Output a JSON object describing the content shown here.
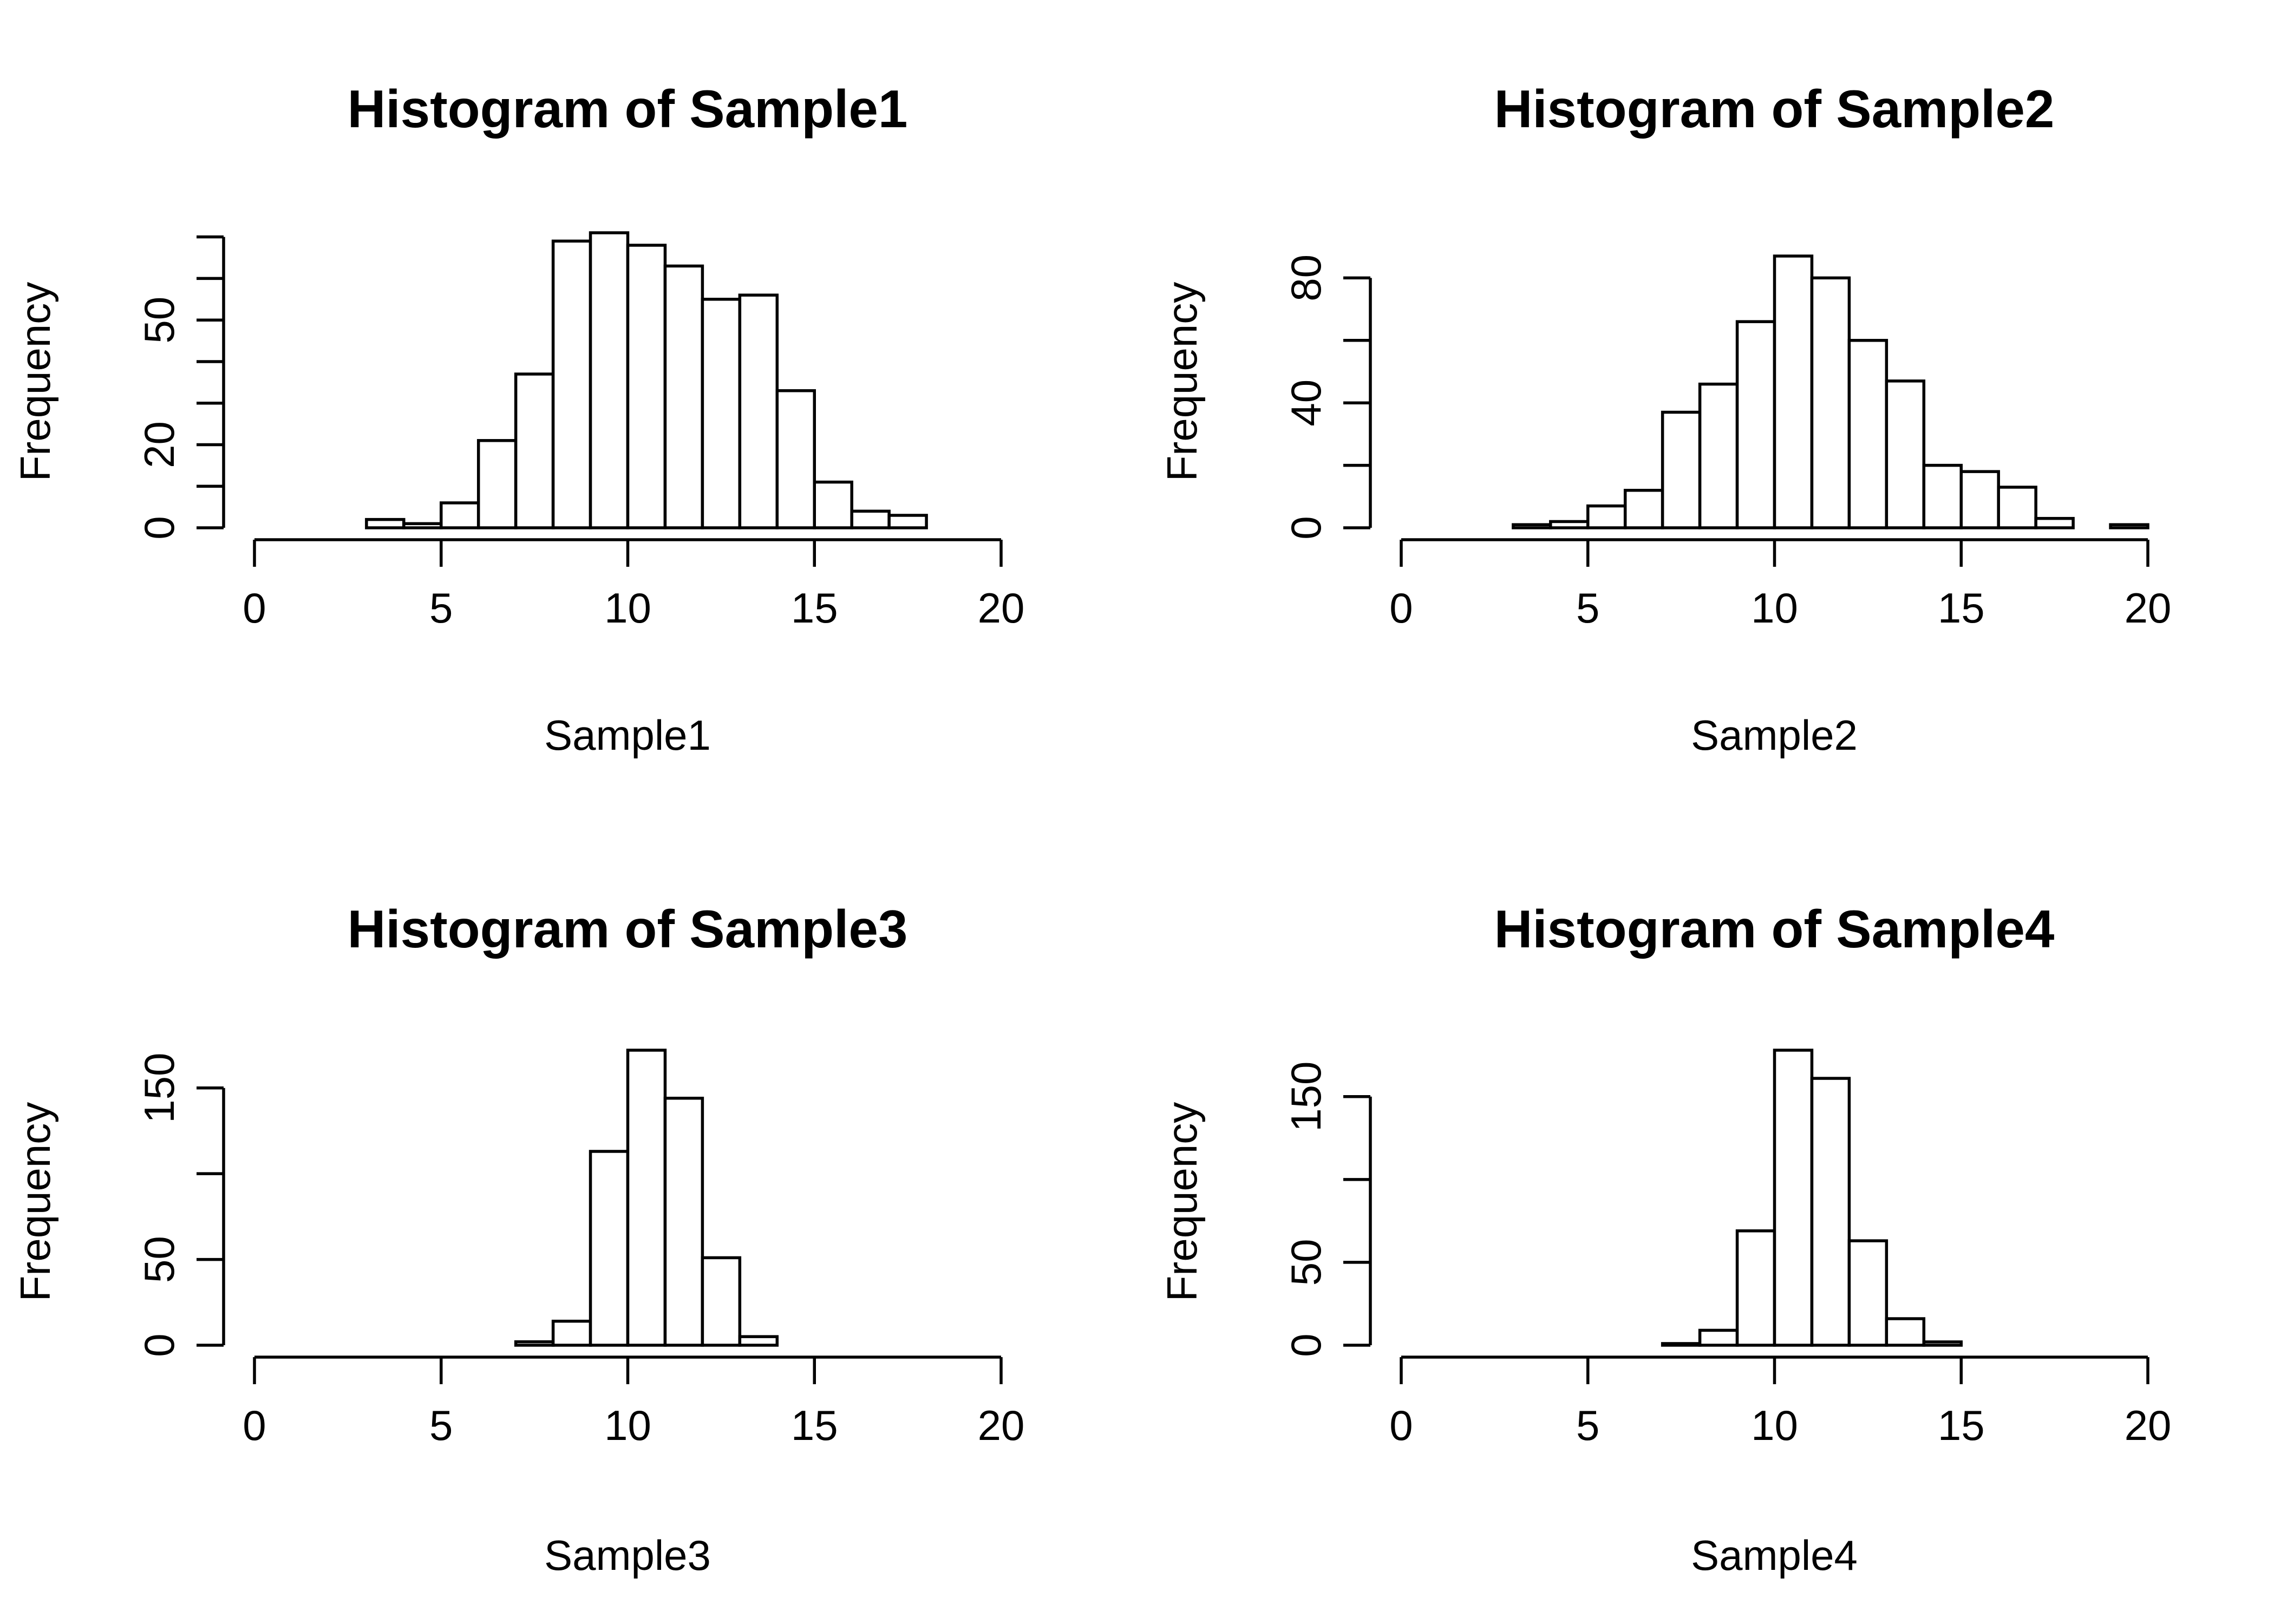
{
  "chart_data": [
    {
      "type": "bar",
      "title": "Histogram of Sample1",
      "xlabel": "Sample1",
      "ylabel": "Frequency",
      "bin_edges": [
        0,
        1,
        2,
        3,
        4,
        5,
        6,
        7,
        8,
        9,
        10,
        11,
        12,
        13,
        14,
        15,
        16,
        17,
        18,
        19,
        20
      ],
      "values": [
        0,
        0,
        0,
        2,
        1,
        6,
        21,
        37,
        69,
        71,
        68,
        63,
        55,
        56,
        33,
        11,
        4,
        3,
        0,
        0
      ],
      "xticks": [
        0,
        5,
        10,
        15,
        20
      ],
      "yticks": [
        0,
        20,
        50
      ],
      "yminor": [
        10,
        30,
        40,
        60,
        70
      ],
      "xlim": [
        0,
        20
      ],
      "ylim": [
        0,
        71
      ]
    },
    {
      "type": "bar",
      "title": "Histogram of Sample2",
      "xlabel": "Sample2",
      "ylabel": "Frequency",
      "bin_edges": [
        0,
        1,
        2,
        3,
        4,
        5,
        6,
        7,
        8,
        9,
        10,
        11,
        12,
        13,
        14,
        15,
        16,
        17,
        18,
        19,
        20
      ],
      "values": [
        0,
        0,
        0,
        1,
        2,
        7,
        12,
        37,
        46,
        66,
        87,
        80,
        60,
        47,
        20,
        18,
        13,
        3,
        0,
        1
      ],
      "xticks": [
        0,
        5,
        10,
        15,
        20
      ],
      "yticks": [
        0,
        40,
        80
      ],
      "yminor": [
        20,
        60
      ],
      "xlim": [
        0,
        20
      ],
      "ylim": [
        0,
        87
      ]
    },
    {
      "type": "bar",
      "title": "Histogram of Sample3",
      "xlabel": "Sample3",
      "ylabel": "Frequency",
      "bin_edges": [
        0,
        1,
        2,
        3,
        4,
        5,
        6,
        7,
        8,
        9,
        10,
        11,
        12,
        13,
        14,
        15,
        16,
        17,
        18,
        19,
        20
      ],
      "values": [
        0,
        0,
        0,
        0,
        0,
        0,
        0,
        2,
        14,
        113,
        172,
        144,
        51,
        5,
        0,
        0,
        0,
        0,
        0,
        0
      ],
      "xticks": [
        0,
        5,
        10,
        15,
        20
      ],
      "yticks": [
        0,
        50,
        150
      ],
      "yminor": [
        100
      ],
      "xlim": [
        0,
        20
      ],
      "ylim": [
        0,
        172
      ]
    },
    {
      "type": "bar",
      "title": "Histogram of Sample4",
      "xlabel": "Sample4",
      "ylabel": "Frequency",
      "bin_edges": [
        0,
        1,
        2,
        3,
        4,
        5,
        6,
        7,
        8,
        9,
        10,
        11,
        12,
        13,
        14,
        15,
        16,
        17,
        18,
        19,
        20
      ],
      "values": [
        0,
        0,
        0,
        0,
        0,
        0,
        0,
        1,
        9,
        69,
        178,
        161,
        63,
        16,
        2,
        0,
        0,
        0,
        0,
        0
      ],
      "xticks": [
        0,
        5,
        10,
        15,
        20
      ],
      "yticks": [
        0,
        50,
        150
      ],
      "yminor": [
        100
      ],
      "xlim": [
        0,
        20
      ],
      "ylim": [
        0,
        178
      ]
    }
  ]
}
